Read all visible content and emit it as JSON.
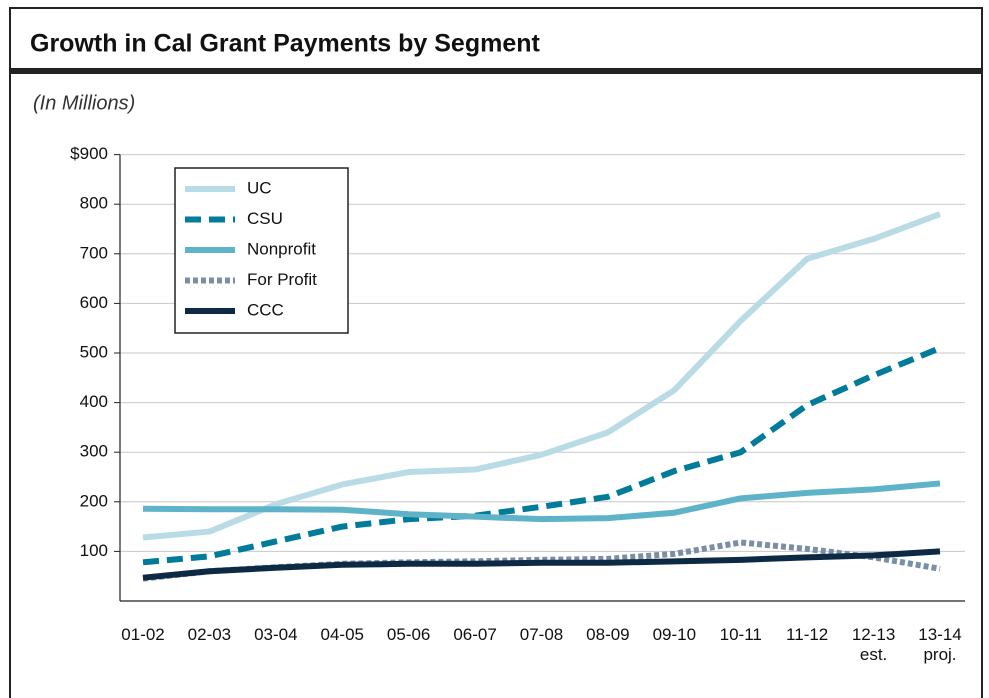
{
  "chart_data": {
    "type": "line",
    "title": "Growth in Cal Grant Payments by Segment",
    "subtitle": "(In Millions)",
    "categories": [
      "01-02",
      "02-03",
      "03-04",
      "04-05",
      "05-06",
      "06-07",
      "07-08",
      "08-09",
      "09-10",
      "10-11",
      "11-12",
      "12-13\nest.",
      "13-14\nproj."
    ],
    "series": [
      {
        "name": "UC",
        "color": "#b9dbe6",
        "dash": "solid",
        "values": [
          128,
          140,
          195,
          235,
          260,
          265,
          295,
          340,
          425,
          565,
          690,
          730,
          780
        ]
      },
      {
        "name": "CSU",
        "color": "#007b99",
        "dash": "dashed",
        "values": [
          78,
          90,
          120,
          150,
          165,
          172,
          190,
          210,
          262,
          300,
          395,
          455,
          510
        ]
      },
      {
        "name": "Nonprofit",
        "color": "#5fb3c9",
        "dash": "solid",
        "values": [
          186,
          185,
          185,
          184,
          175,
          170,
          165,
          167,
          178,
          207,
          218,
          225,
          237
        ]
      },
      {
        "name": "For Profit",
        "color": "#7b8ea8",
        "dash": "dotted",
        "values": [
          45,
          60,
          68,
          75,
          78,
          80,
          83,
          85,
          95,
          118,
          105,
          88,
          65
        ]
      },
      {
        "name": "CCC",
        "color": "#0d2a45",
        "dash": "solid",
        "values": [
          47,
          60,
          67,
          73,
          75,
          75,
          77,
          77,
          80,
          83,
          88,
          92,
          100
        ]
      }
    ],
    "ylim": [
      0,
      900
    ],
    "yticks": [
      100,
      200,
      300,
      400,
      500,
      600,
      700,
      800,
      {
        "value": 900,
        "label": "$900"
      }
    ],
    "grid": true,
    "legend": "upper left"
  }
}
